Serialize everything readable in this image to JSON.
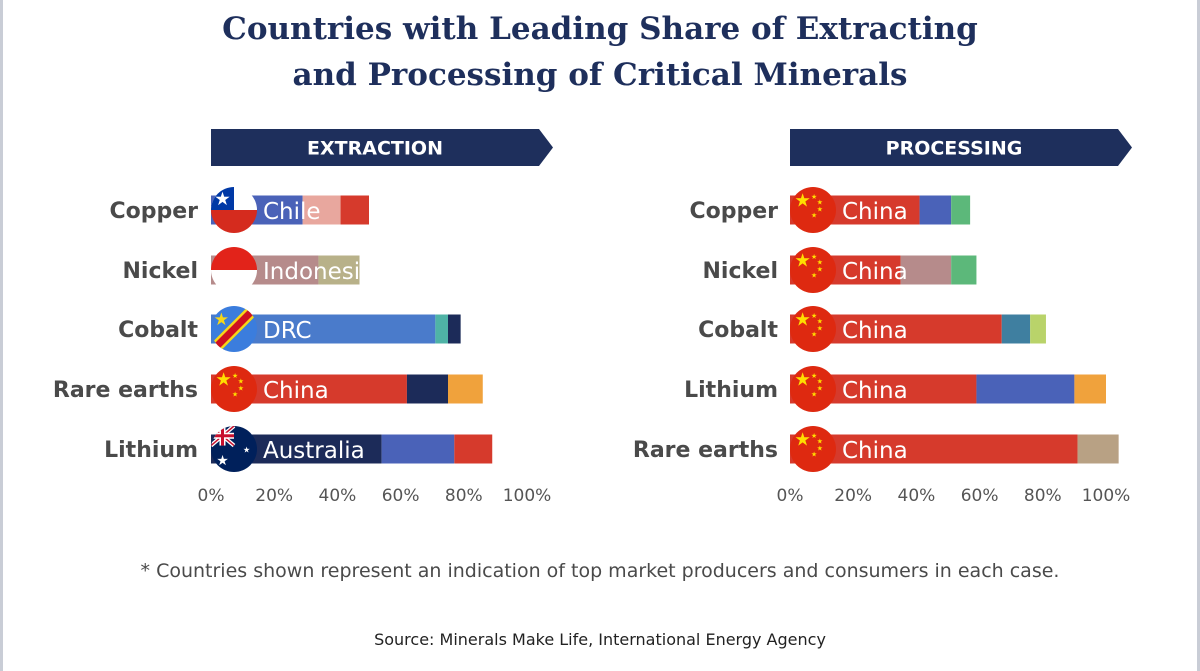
{
  "title": {
    "line1": "Countries with Leading Share of Extracting",
    "line2": "and Processing of Critical Minerals"
  },
  "footnote": "* Countries shown represent an indication of top market producers and consumers in each case.",
  "source": "Source: Minerals Make Life, International Energy Agency",
  "colors": {
    "header": "#1e2f5c",
    "china_red": "#d63a2c",
    "other_blue": "#4a62b8",
    "navy": "#1c2b59",
    "green": "#5cb87a",
    "teal": "#3f7fa0",
    "orange": "#f0a23c"
  },
  "chart_data": [
    {
      "type": "bar",
      "orientation": "horizontal",
      "stacked": true,
      "header": "EXTRACTION",
      "xlim": [
        0,
        100
      ],
      "x_ticks": [
        "0%",
        "20%",
        "40%",
        "60%",
        "80%",
        "100%"
      ],
      "categories": [
        "Copper",
        "Nickel",
        "Cobalt",
        "Rare earths",
        "Lithium"
      ],
      "rows": [
        {
          "category": "Copper",
          "country": "Chile",
          "flag": "chile-flag-icon",
          "segments": [
            {
              "value": 29,
              "color": "#4a62b8"
            },
            {
              "value": 12,
              "color": "#e8a79e"
            },
            {
              "value": 9,
              "color": "#d63a2c"
            }
          ]
        },
        {
          "category": "Nickel",
          "country": "Indonesia",
          "flag": "indonesia-flag-icon",
          "segments": [
            {
              "value": 34,
              "color": "#b68b8b"
            },
            {
              "value": 13,
              "color": "#b8b189"
            }
          ]
        },
        {
          "category": "Cobalt",
          "country": "DRC",
          "flag": "drc-flag-icon",
          "segments": [
            {
              "value": 71,
              "color": "#4a7bcb"
            },
            {
              "value": 4,
              "color": "#4fb3a6"
            },
            {
              "value": 4,
              "color": "#1c2b59"
            }
          ]
        },
        {
          "category": "Rare earths",
          "country": "China",
          "flag": "china-flag-icon",
          "segments": [
            {
              "value": 62,
              "color": "#d63a2c"
            },
            {
              "value": 13,
              "color": "#1c2b59"
            },
            {
              "value": 11,
              "color": "#f0a23c"
            }
          ]
        },
        {
          "category": "Lithium",
          "country": "Australia",
          "flag": "australia-flag-icon",
          "segments": [
            {
              "value": 54,
              "color": "#1c2b59"
            },
            {
              "value": 23,
              "color": "#4a62b8"
            },
            {
              "value": 12,
              "color": "#d63a2c"
            }
          ]
        }
      ]
    },
    {
      "type": "bar",
      "orientation": "horizontal",
      "stacked": true,
      "header": "PROCESSING",
      "xlim": [
        0,
        100
      ],
      "x_ticks": [
        "0%",
        "20%",
        "40%",
        "60%",
        "80%",
        "100%"
      ],
      "categories": [
        "Copper",
        "Nickel",
        "Cobalt",
        "Lithium",
        "Rare earths"
      ],
      "rows": [
        {
          "category": "Copper",
          "country": "China",
          "flag": "china-flag-icon",
          "segments": [
            {
              "value": 41,
              "color": "#d63a2c"
            },
            {
              "value": 10,
              "color": "#4a62b8"
            },
            {
              "value": 6,
              "color": "#5cb87a"
            }
          ]
        },
        {
          "category": "Nickel",
          "country": "China",
          "flag": "china-flag-icon",
          "segments": [
            {
              "value": 35,
              "color": "#d63a2c"
            },
            {
              "value": 16,
              "color": "#b68b8b"
            },
            {
              "value": 8,
              "color": "#5cb87a"
            }
          ]
        },
        {
          "category": "Cobalt",
          "country": "China",
          "flag": "china-flag-icon",
          "segments": [
            {
              "value": 67,
              "color": "#d63a2c"
            },
            {
              "value": 9,
              "color": "#3f7fa0"
            },
            {
              "value": 5,
              "color": "#b9d36a"
            }
          ]
        },
        {
          "category": "Lithium",
          "country": "China",
          "flag": "china-flag-icon",
          "segments": [
            {
              "value": 59,
              "color": "#d63a2c"
            },
            {
              "value": 31,
              "color": "#4a62b8"
            },
            {
              "value": 10,
              "color": "#f0a23c"
            }
          ]
        },
        {
          "category": "Rare earths",
          "country": "China",
          "flag": "china-flag-icon",
          "segments": [
            {
              "value": 91,
              "color": "#d63a2c"
            },
            {
              "value": 13,
              "color": "#b8a184"
            }
          ]
        }
      ]
    }
  ]
}
